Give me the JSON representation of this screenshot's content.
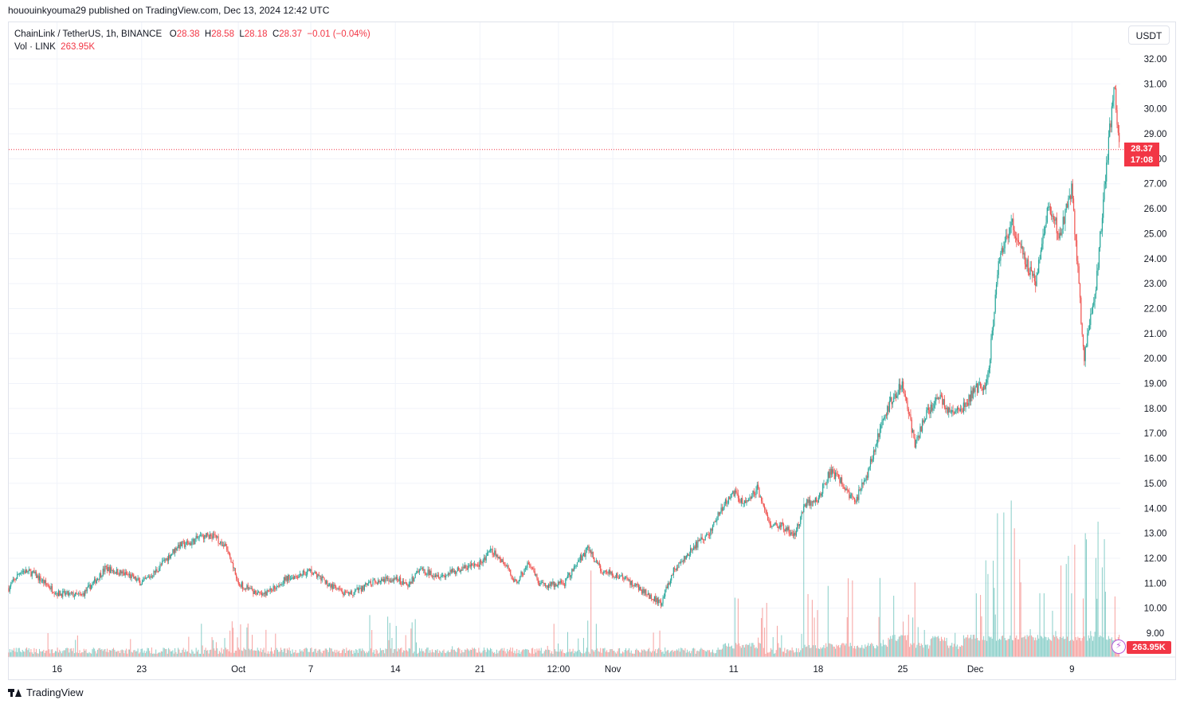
{
  "header": {
    "published_line": "hououinkyouma29 published on TradingView.com, Dec 13, 2024 12:42 UTC"
  },
  "legend": {
    "symbol": "ChainLink / TetherUS, 1h, BINANCE",
    "open_label": "O",
    "open": "28.38",
    "high_label": "H",
    "high": "28.58",
    "low_label": "L",
    "low": "28.18",
    "close_label": "C",
    "close": "28.37",
    "change": "−0.01 (−0.04%)",
    "vol_label": "Vol · LINK",
    "vol_value": "263.95K"
  },
  "toolbar": {
    "currency_label": "USDT"
  },
  "price_tag": {
    "price": "28.37",
    "countdown": "17:08"
  },
  "volume_tag": "263.95K",
  "footer": {
    "brand": "TradingView"
  },
  "colors": {
    "up": "#26a69a",
    "down": "#ef5350",
    "grid": "#f0f3fa",
    "last_price_line": "#f23645"
  },
  "chart_data": {
    "type": "candlestick",
    "title": "ChainLink / TetherUS, 1h, BINANCE",
    "x_tick_labels": [
      "16",
      "23",
      "Oct",
      "7",
      "14",
      "21",
      "12:00",
      "Nov",
      "11",
      "18",
      "25",
      "Dec",
      "9"
    ],
    "y_tick_labels": [
      "9.00",
      "10.00",
      "11.00",
      "12.00",
      "13.00",
      "14.00",
      "15.00",
      "16.00",
      "17.00",
      "18.00",
      "19.00",
      "20.00",
      "21.00",
      "22.00",
      "23.00",
      "24.00",
      "25.00",
      "26.00",
      "27.00",
      "28.00",
      "29.00",
      "30.00",
      "31.00",
      "32.00"
    ],
    "ylim": [
      8.0,
      32.5
    ],
    "last_price": 28.37,
    "grid": true,
    "x_range": [
      "2024-09-12",
      "2024-12-13"
    ],
    "price_path": [
      [
        "2024-09-12",
        10.8
      ],
      [
        "2024-09-13",
        11.5
      ],
      [
        "2024-09-14",
        11.4
      ],
      [
        "2024-09-16",
        10.6
      ],
      [
        "2024-09-18",
        10.5
      ],
      [
        "2024-09-19",
        11.0
      ],
      [
        "2024-09-20",
        11.6
      ],
      [
        "2024-09-22",
        11.3
      ],
      [
        "2024-09-23",
        11.0
      ],
      [
        "2024-09-24",
        11.4
      ],
      [
        "2024-09-26",
        12.5
      ],
      [
        "2024-09-27",
        12.6
      ],
      [
        "2024-09-28",
        12.9
      ],
      [
        "2024-09-29",
        12.9
      ],
      [
        "2024-09-30",
        12.4
      ],
      [
        "2024-10-01",
        11.0
      ],
      [
        "2024-10-03",
        10.5
      ],
      [
        "2024-10-05",
        11.2
      ],
      [
        "2024-10-07",
        11.5
      ],
      [
        "2024-10-08",
        11.1
      ],
      [
        "2024-10-10",
        10.5
      ],
      [
        "2024-10-12",
        11.0
      ],
      [
        "2024-10-14",
        11.2
      ],
      [
        "2024-10-15",
        10.9
      ],
      [
        "2024-10-16",
        11.5
      ],
      [
        "2024-10-18",
        11.3
      ],
      [
        "2024-10-19",
        11.5
      ],
      [
        "2024-10-21",
        11.8
      ],
      [
        "2024-10-22",
        12.3
      ],
      [
        "2024-10-23",
        11.8
      ],
      [
        "2024-10-24",
        11.0
      ],
      [
        "2024-10-25",
        11.8
      ],
      [
        "2024-10-26",
        10.9
      ],
      [
        "2024-10-28",
        11.0
      ],
      [
        "2024-10-29",
        11.8
      ],
      [
        "2024-10-30",
        12.4
      ],
      [
        "2024-10-31",
        11.5
      ],
      [
        "2024-11-02",
        11.2
      ],
      [
        "2024-11-04",
        10.5
      ],
      [
        "2024-11-05",
        10.2
      ],
      [
        "2024-11-06",
        11.5
      ],
      [
        "2024-11-07",
        12.0
      ],
      [
        "2024-11-08",
        12.6
      ],
      [
        "2024-11-09",
        13.0
      ],
      [
        "2024-11-10",
        14.0
      ],
      [
        "2024-11-11",
        14.6
      ],
      [
        "2024-11-12",
        14.2
      ],
      [
        "2024-11-13",
        14.8
      ],
      [
        "2024-11-14",
        13.3
      ],
      [
        "2024-11-15",
        13.3
      ],
      [
        "2024-11-16",
        12.9
      ],
      [
        "2024-11-17",
        14.2
      ],
      [
        "2024-11-18",
        14.4
      ],
      [
        "2024-11-19",
        15.5
      ],
      [
        "2024-11-20",
        15.0
      ],
      [
        "2024-11-21",
        14.2
      ],
      [
        "2024-11-22",
        15.3
      ],
      [
        "2024-11-23",
        17.0
      ],
      [
        "2024-11-24",
        18.3
      ],
      [
        "2024-11-25",
        19.0
      ],
      [
        "2024-11-26",
        16.6
      ],
      [
        "2024-11-27",
        17.8
      ],
      [
        "2024-11-28",
        18.5
      ],
      [
        "2024-11-29",
        17.8
      ],
      [
        "2024-11-30",
        18.0
      ],
      [
        "2024-12-01",
        18.8
      ],
      [
        "2024-12-02",
        19.0
      ],
      [
        "2024-12-03",
        24.0
      ],
      [
        "2024-12-04",
        25.5
      ],
      [
        "2024-12-05",
        24.0
      ],
      [
        "2024-12-06",
        23.0
      ],
      [
        "2024-12-07",
        26.0
      ],
      [
        "2024-12-08",
        25.0
      ],
      [
        "2024-12-09",
        26.8
      ],
      [
        "2024-12-10",
        20.0
      ],
      [
        "2024-12-11",
        23.0
      ],
      [
        "2024-12-12",
        28.5
      ],
      [
        "2024-12-12T12:00",
        30.8
      ],
      [
        "2024-12-13",
        28.37
      ]
    ],
    "volume": {
      "last_value": "263.95K",
      "spikes": [
        [
          "2024-09-30",
          0.25
        ],
        [
          "2024-10-14",
          0.28
        ],
        [
          "2024-10-29",
          0.3
        ],
        [
          "2024-11-13",
          0.5
        ],
        [
          "2024-11-19",
          0.55
        ],
        [
          "2024-11-25",
          0.5
        ],
        [
          "2024-12-03",
          1.0
        ],
        [
          "2024-12-06",
          0.5
        ],
        [
          "2024-12-10",
          0.85
        ],
        [
          "2024-12-13",
          0.7
        ]
      ]
    }
  }
}
